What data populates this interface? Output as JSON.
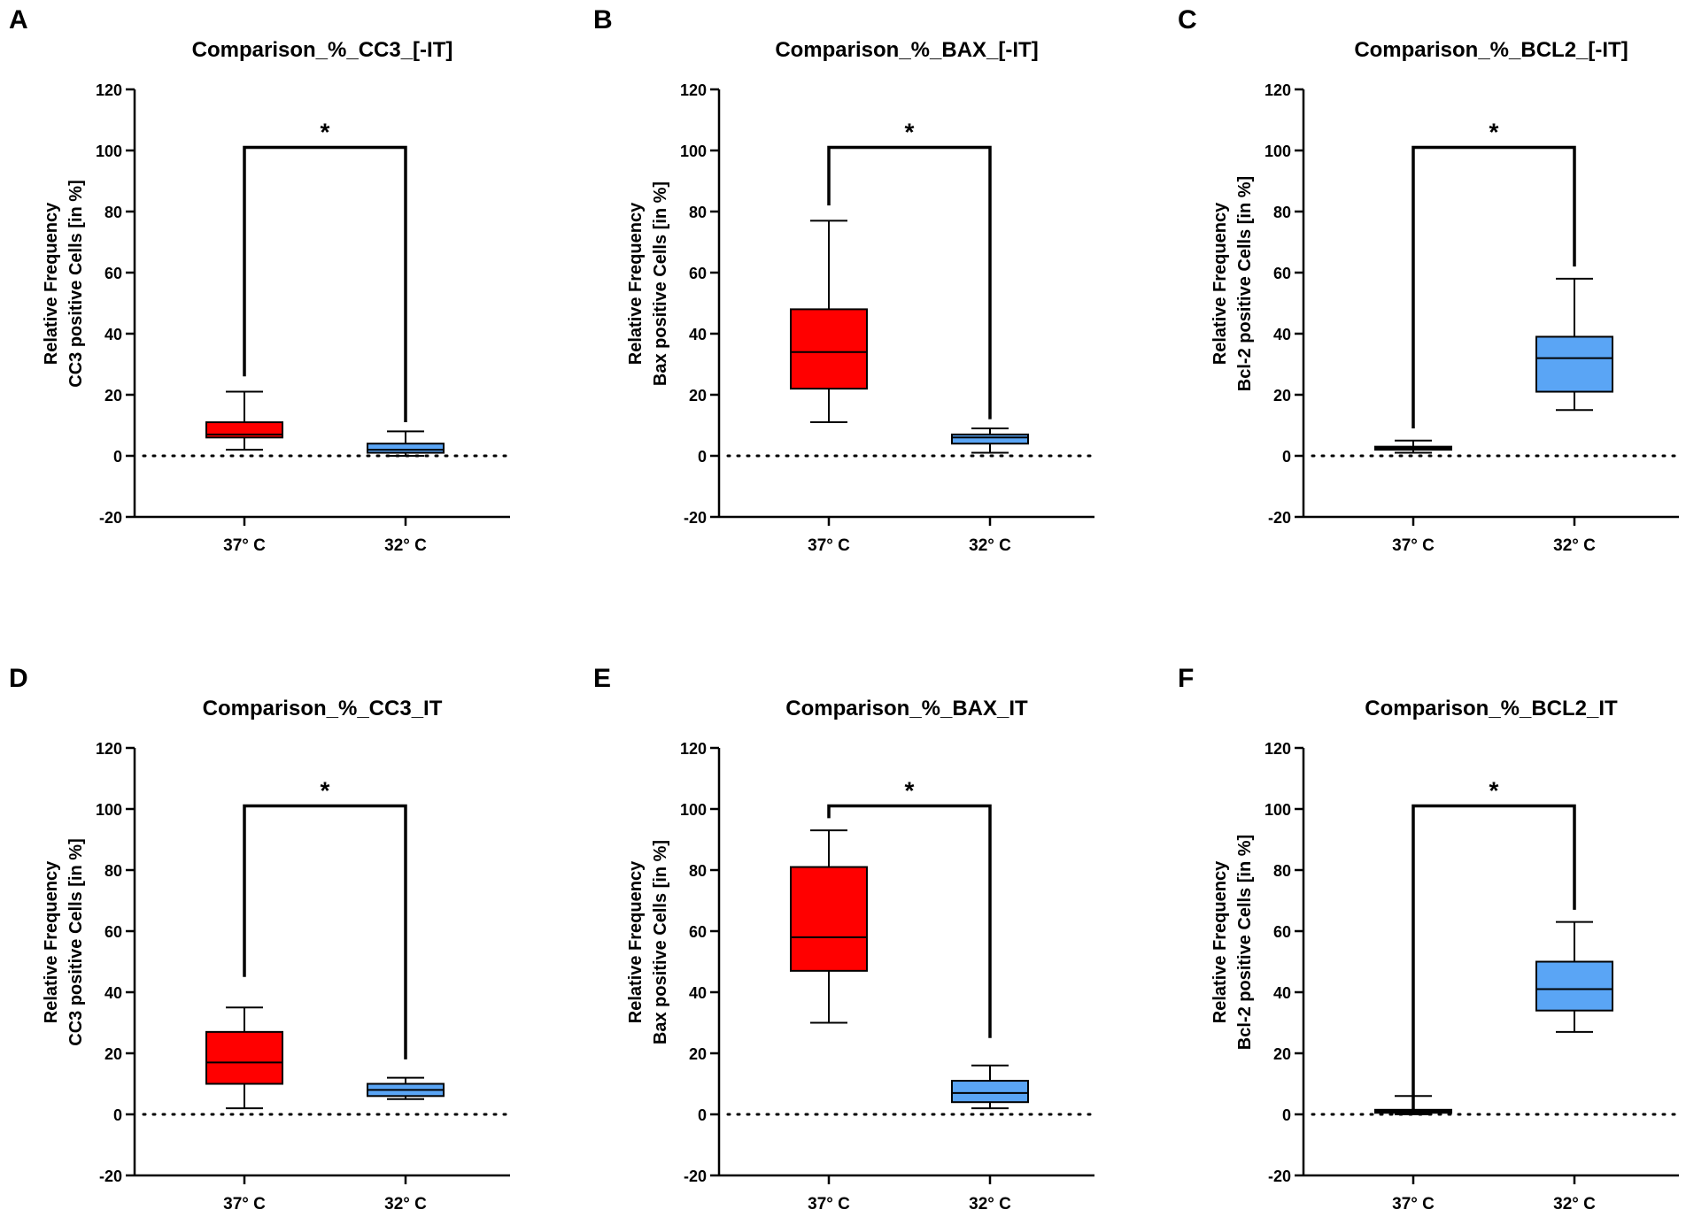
{
  "figure": {
    "colors": {
      "group1_fill": "#ff0000",
      "group2_fill": "#5aa5f5",
      "stroke": "#000000",
      "background": "#ffffff"
    }
  },
  "chart_data": [
    {
      "panel": "A",
      "type": "box",
      "title": "Comparison_%_CC3_[-IT]",
      "ylabel_lines": [
        "Relative Frequency",
        "CC3 positive Cells [in %]"
      ],
      "categories": [
        "37° C",
        "32° C"
      ],
      "ylim": [
        -20,
        120
      ],
      "yticks": [
        -20,
        0,
        20,
        40,
        60,
        80,
        100,
        120
      ],
      "baseline": 0,
      "boxes": [
        {
          "min": 2,
          "q1": 6,
          "median": 7,
          "q3": 11,
          "max": 21
        },
        {
          "min": 0,
          "q1": 1,
          "median": 2,
          "q3": 4,
          "max": 8
        }
      ],
      "significance": {
        "label": "*",
        "bracket_y": 101,
        "left_end_y": 26,
        "right_end_y": 11
      }
    },
    {
      "panel": "B",
      "type": "box",
      "title": "Comparison_%_BAX_[-IT]",
      "ylabel_lines": [
        "Relative Frequency",
        "Bax positive Cells [in %]"
      ],
      "categories": [
        "37° C",
        "32° C"
      ],
      "ylim": [
        -20,
        120
      ],
      "yticks": [
        -20,
        0,
        20,
        40,
        60,
        80,
        100,
        120
      ],
      "baseline": 0,
      "boxes": [
        {
          "min": 11,
          "q1": 22,
          "median": 34,
          "q3": 48,
          "max": 77
        },
        {
          "min": 1,
          "q1": 4,
          "median": 6,
          "q3": 7,
          "max": 9
        }
      ],
      "significance": {
        "label": "*",
        "bracket_y": 101,
        "left_end_y": 82,
        "right_end_y": 12
      }
    },
    {
      "panel": "C",
      "type": "box",
      "title": "Comparison_%_BCL2_[-IT]",
      "ylabel_lines": [
        "Relative Frequency",
        "Bcl-2 positive Cells [in %]"
      ],
      "categories": [
        "37° C",
        "32° C"
      ],
      "ylim": [
        -20,
        120
      ],
      "yticks": [
        -20,
        0,
        20,
        40,
        60,
        80,
        100,
        120
      ],
      "baseline": 0,
      "boxes": [
        {
          "min": 1,
          "q1": 2,
          "median": 2.5,
          "q3": 3,
          "max": 5
        },
        {
          "min": 15,
          "q1": 21,
          "median": 32,
          "q3": 39,
          "max": 58
        }
      ],
      "significance": {
        "label": "*",
        "bracket_y": 101,
        "left_end_y": 9,
        "right_end_y": 62
      }
    },
    {
      "panel": "D",
      "type": "box",
      "title": "Comparison_%_CC3_IT",
      "ylabel_lines": [
        "Relative Frequency",
        "CC3 positive Cells [in %]"
      ],
      "categories": [
        "37° C",
        "32° C"
      ],
      "ylim": [
        -20,
        120
      ],
      "yticks": [
        -20,
        0,
        20,
        40,
        60,
        80,
        100,
        120
      ],
      "baseline": 0,
      "boxes": [
        {
          "min": 2,
          "q1": 10,
          "median": 17,
          "q3": 27,
          "max": 35
        },
        {
          "min": 5,
          "q1": 6,
          "median": 8,
          "q3": 10,
          "max": 12
        }
      ],
      "significance": {
        "label": "*",
        "bracket_y": 101,
        "left_end_y": 45,
        "right_end_y": 18
      }
    },
    {
      "panel": "E",
      "type": "box",
      "title": "Comparison_%_BAX_IT",
      "ylabel_lines": [
        "Relative Frequency",
        "Bax positive Cells [in %]"
      ],
      "categories": [
        "37° C",
        "32° C"
      ],
      "ylim": [
        -20,
        120
      ],
      "yticks": [
        -20,
        0,
        20,
        40,
        60,
        80,
        100,
        120
      ],
      "baseline": 0,
      "boxes": [
        {
          "min": 30,
          "q1": 47,
          "median": 58,
          "q3": 81,
          "max": 93
        },
        {
          "min": 2,
          "q1": 4,
          "median": 7,
          "q3": 11,
          "max": 16
        }
      ],
      "significance": {
        "label": "*",
        "bracket_y": 101,
        "left_end_y": 97,
        "right_end_y": 25
      }
    },
    {
      "panel": "F",
      "type": "box",
      "title": "Comparison_%_BCL2_IT",
      "ylabel_lines": [
        "Relative Frequency",
        "Bcl-2 positive Cells [in %]"
      ],
      "categories": [
        "37° C",
        "32° C"
      ],
      "ylim": [
        -20,
        120
      ],
      "yticks": [
        -20,
        0,
        20,
        40,
        60,
        80,
        100,
        120
      ],
      "baseline": 0,
      "boxes": [
        {
          "min": 0,
          "q1": 0.5,
          "median": 1,
          "q3": 1.5,
          "max": 6
        },
        {
          "min": 27,
          "q1": 34,
          "median": 41,
          "q3": 50,
          "max": 63
        }
      ],
      "significance": {
        "label": "*",
        "bracket_y": 101,
        "left_end_y": 0,
        "right_end_y": 67
      }
    }
  ]
}
